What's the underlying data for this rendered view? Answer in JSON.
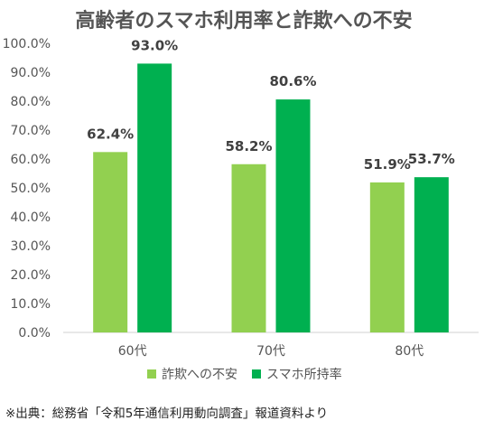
{
  "chart_data": {
    "type": "bar",
    "title": "高齢者のスマホ利用率と詐欺への不安",
    "categories": [
      "60代",
      "70代",
      "80代"
    ],
    "series": [
      {
        "name": "詐欺への不安",
        "color": "#92d050",
        "values": [
          62.4,
          58.2,
          51.9
        ],
        "labels": [
          "62.4%",
          "58.2%",
          "51.9%"
        ]
      },
      {
        "name": "スマホ所持率",
        "color": "#00b050",
        "values": [
          93.0,
          80.6,
          53.7
        ],
        "labels": [
          "93.0%",
          "80.6%",
          "53.7%"
        ]
      }
    ],
    "ylim": [
      0,
      100
    ],
    "yticks": [
      "0.0%",
      "10.0%",
      "20.0%",
      "30.0%",
      "40.0%",
      "50.0%",
      "60.0%",
      "70.0%",
      "80.0%",
      "90.0%",
      "100.0%"
    ],
    "ytick_values": [
      0,
      10,
      20,
      30,
      40,
      50,
      60,
      70,
      80,
      90,
      100
    ],
    "grid": false,
    "legend_position": "bottom"
  },
  "source_note": "※出典：総務省「令和5年通信利用動向調査」報道資料より"
}
